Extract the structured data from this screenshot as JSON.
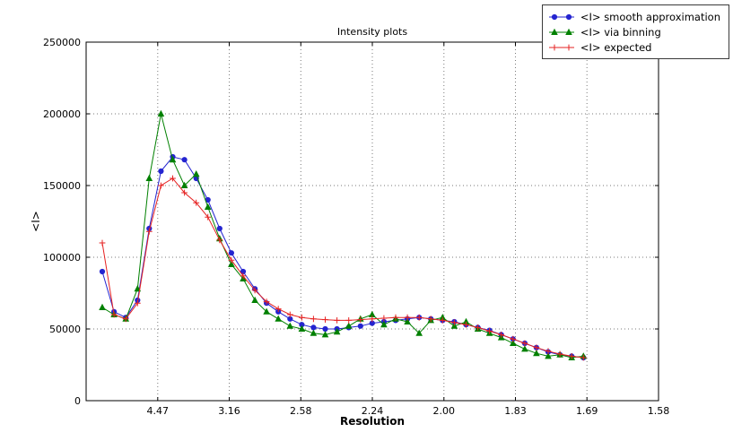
{
  "window": {
    "background": "#ffffff"
  },
  "chart_data": {
    "type": "line",
    "title": "Intensity plots",
    "xlabel": "Resolution",
    "ylabel": "<I>",
    "grid": "dotted",
    "legend_position": "upper right",
    "x_axis": {
      "unit": "1/d^2",
      "min": 0.0,
      "max": 0.4,
      "tick_positions": [
        0.05,
        0.1,
        0.15,
        0.2,
        0.25,
        0.3,
        0.35,
        0.4
      ],
      "tick_labels": [
        "4.47",
        "3.16",
        "2.58",
        "2.24",
        "2.00",
        "1.83",
        "1.69",
        "1.58"
      ]
    },
    "y_axis": {
      "min": 0,
      "max": 250000,
      "tick_positions": [
        0,
        50000,
        100000,
        150000,
        200000,
        250000
      ],
      "tick_labels": [
        "0",
        "50000",
        "100000",
        "150000",
        "200000",
        "250000"
      ]
    },
    "x": [
      0.0113,
      0.0195,
      0.0277,
      0.0359,
      0.0441,
      0.0523,
      0.0605,
      0.0687,
      0.0769,
      0.0851,
      0.0933,
      0.1015,
      0.1097,
      0.1179,
      0.1261,
      0.1343,
      0.1425,
      0.1507,
      0.1589,
      0.1671,
      0.1753,
      0.1835,
      0.1917,
      0.1999,
      0.2081,
      0.2163,
      0.2245,
      0.2327,
      0.2409,
      0.2491,
      0.2573,
      0.2655,
      0.2737,
      0.2819,
      0.2901,
      0.2983,
      0.3065,
      0.3147,
      0.3229,
      0.3311,
      0.3393,
      0.3475
    ],
    "series": [
      {
        "name": "<I> smooth approximation",
        "color": "#2424d0",
        "marker": "circle",
        "values": [
          90000,
          62000,
          58000,
          70000,
          120000,
          160000,
          170000,
          168000,
          155000,
          140000,
          120000,
          103000,
          90000,
          78000,
          68000,
          62000,
          57000,
          53000,
          51000,
          50000,
          50000,
          51000,
          52000,
          54000,
          55000,
          56000,
          57000,
          58000,
          57000,
          56000,
          55000,
          53000,
          51000,
          49000,
          46000,
          43000,
          40000,
          37000,
          34000,
          32000,
          31000,
          30000
        ]
      },
      {
        "name": "<I> via binning",
        "color": "#008000",
        "marker": "triangle",
        "values": [
          65000,
          60000,
          57000,
          78000,
          155000,
          200000,
          168000,
          150000,
          158000,
          135000,
          113000,
          95000,
          85000,
          70000,
          62000,
          57000,
          52000,
          50000,
          47000,
          46000,
          48000,
          52000,
          57000,
          60000,
          53000,
          57000,
          55000,
          47000,
          56000,
          58000,
          52000,
          55000,
          50000,
          47000,
          44000,
          40000,
          36000,
          33000,
          31000,
          32000,
          30000,
          31000
        ]
      },
      {
        "name": "<I> expected",
        "color": "#e62222",
        "marker": "plus",
        "values": [
          110000,
          60000,
          57000,
          68000,
          118000,
          150000,
          155000,
          145000,
          138000,
          128000,
          112000,
          98000,
          87000,
          77000,
          69000,
          64000,
          60000,
          58000,
          57000,
          56500,
          56000,
          56000,
          56500,
          57000,
          57500,
          58000,
          58000,
          58000,
          57000,
          56000,
          54500,
          53000,
          51000,
          48500,
          46000,
          43000,
          40000,
          37000,
          34500,
          32500,
          31000,
          30000
        ]
      }
    ]
  }
}
